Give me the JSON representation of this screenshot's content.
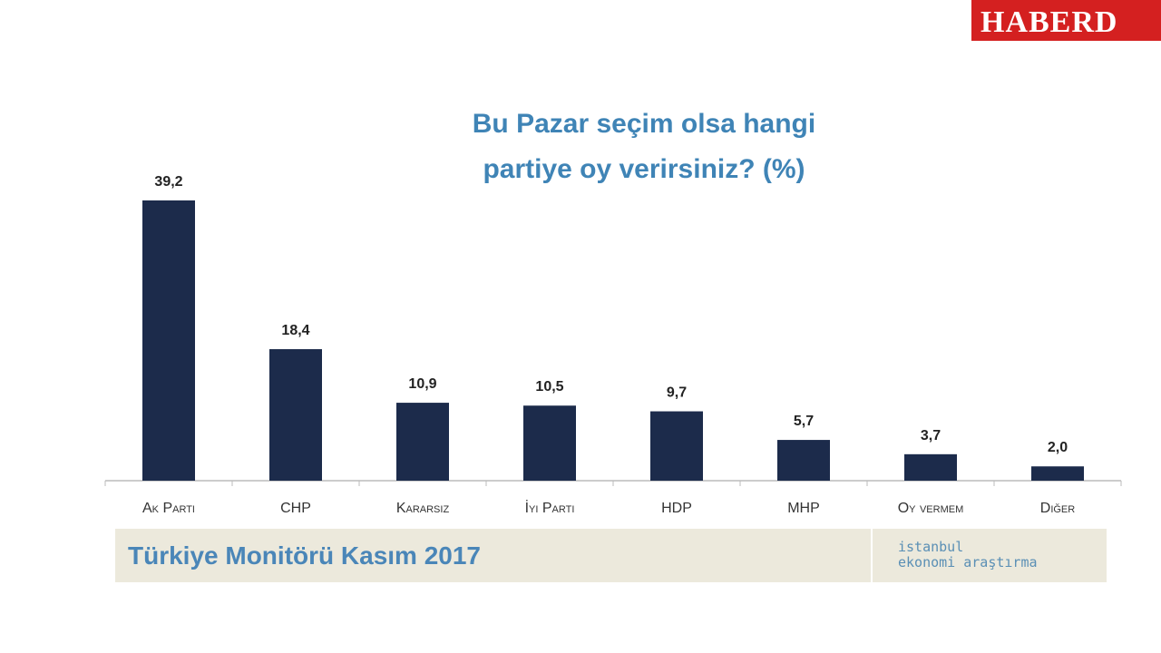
{
  "watermark": "HABERD",
  "chart_data": {
    "type": "bar",
    "title": "Bu Pazar seçim olsa hangi partiye oy verirsiniz? (%)",
    "categories": [
      "Ak Parti",
      "CHP",
      "Kararsız",
      "İyi Parti",
      "HDP",
      "MHP",
      "Oy vermem",
      "Diğer"
    ],
    "values": [
      39.2,
      18.4,
      10.9,
      10.5,
      9.7,
      5.7,
      3.7,
      2.0
    ],
    "value_labels": [
      "39,2",
      "18,4",
      "10,9",
      "10,5",
      "9,7",
      "5,7",
      "3,7",
      "2,0"
    ],
    "color": "#1c2b4b"
  },
  "footer": {
    "title": "Türkiye Monitörü Kasım 2017",
    "logo_line1": "istanbul",
    "logo_line2": "ekonomi araştırma"
  }
}
